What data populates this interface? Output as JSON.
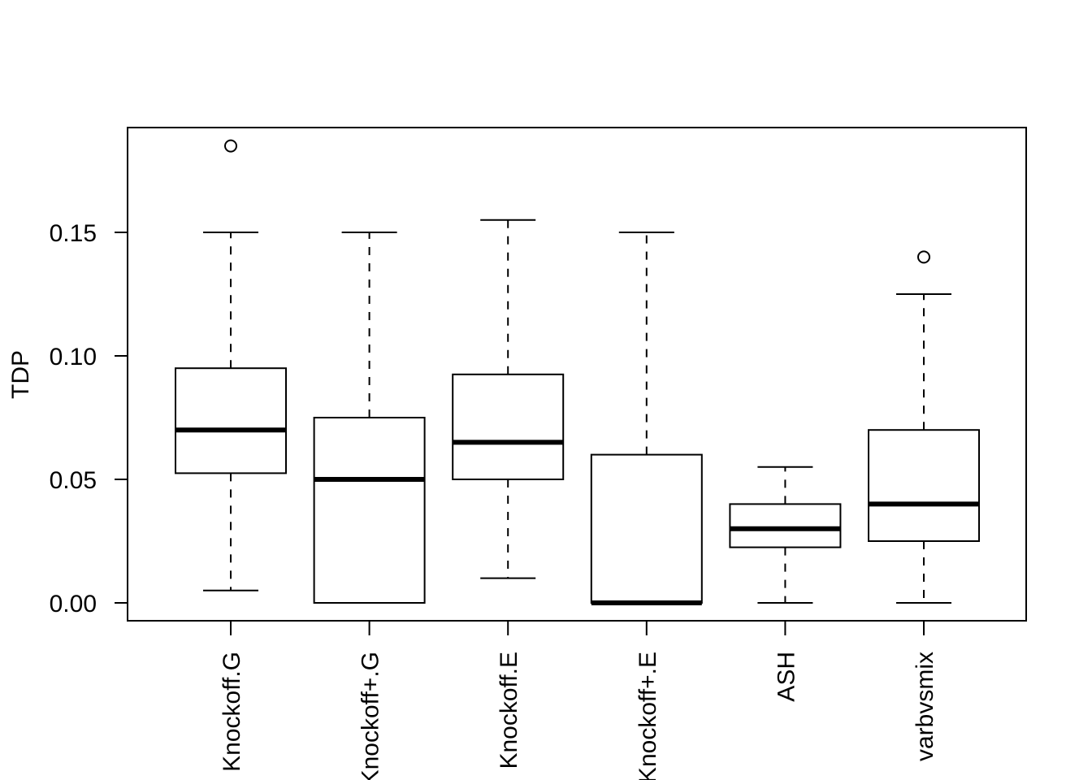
{
  "chart_data": {
    "type": "boxplot",
    "title": "",
    "xlabel": "",
    "ylabel": "TDP",
    "ylim": [
      -0.007,
      0.193
    ],
    "yticks": [
      0.0,
      0.05,
      0.1,
      0.15
    ],
    "ytick_labels": [
      "0.00",
      "0.05",
      "0.10",
      "0.15"
    ],
    "grid": false,
    "legend": "none",
    "categories": [
      "Knockoff.G",
      "Knockoff+.G",
      "Knockoff.E",
      "Knockoff+.E",
      "ASH",
      "varbvsmix"
    ],
    "boxes": [
      {
        "name": "Knockoff.G",
        "whisker_low": 0.005,
        "q1": 0.0525,
        "median": 0.07,
        "q3": 0.095,
        "whisker_high": 0.15,
        "outliers": [
          0.185
        ]
      },
      {
        "name": "Knockoff+.G",
        "whisker_low": 0.0,
        "q1": 0.0,
        "median": 0.05,
        "q3": 0.075,
        "whisker_high": 0.15,
        "outliers": []
      },
      {
        "name": "Knockoff.E",
        "whisker_low": 0.01,
        "q1": 0.05,
        "median": 0.065,
        "q3": 0.0925,
        "whisker_high": 0.155,
        "outliers": []
      },
      {
        "name": "Knockoff+.E",
        "whisker_low": 0.0,
        "q1": 0.0,
        "median": 0.0,
        "q3": 0.06,
        "whisker_high": 0.15,
        "outliers": []
      },
      {
        "name": "ASH",
        "whisker_low": 0.0,
        "q1": 0.0225,
        "median": 0.03,
        "q3": 0.04,
        "whisker_high": 0.055,
        "outliers": []
      },
      {
        "name": "varbvsmix",
        "whisker_low": 0.0,
        "q1": 0.025,
        "median": 0.04,
        "q3": 0.07,
        "whisker_high": 0.125,
        "outliers": [
          0.14
        ]
      }
    ]
  }
}
